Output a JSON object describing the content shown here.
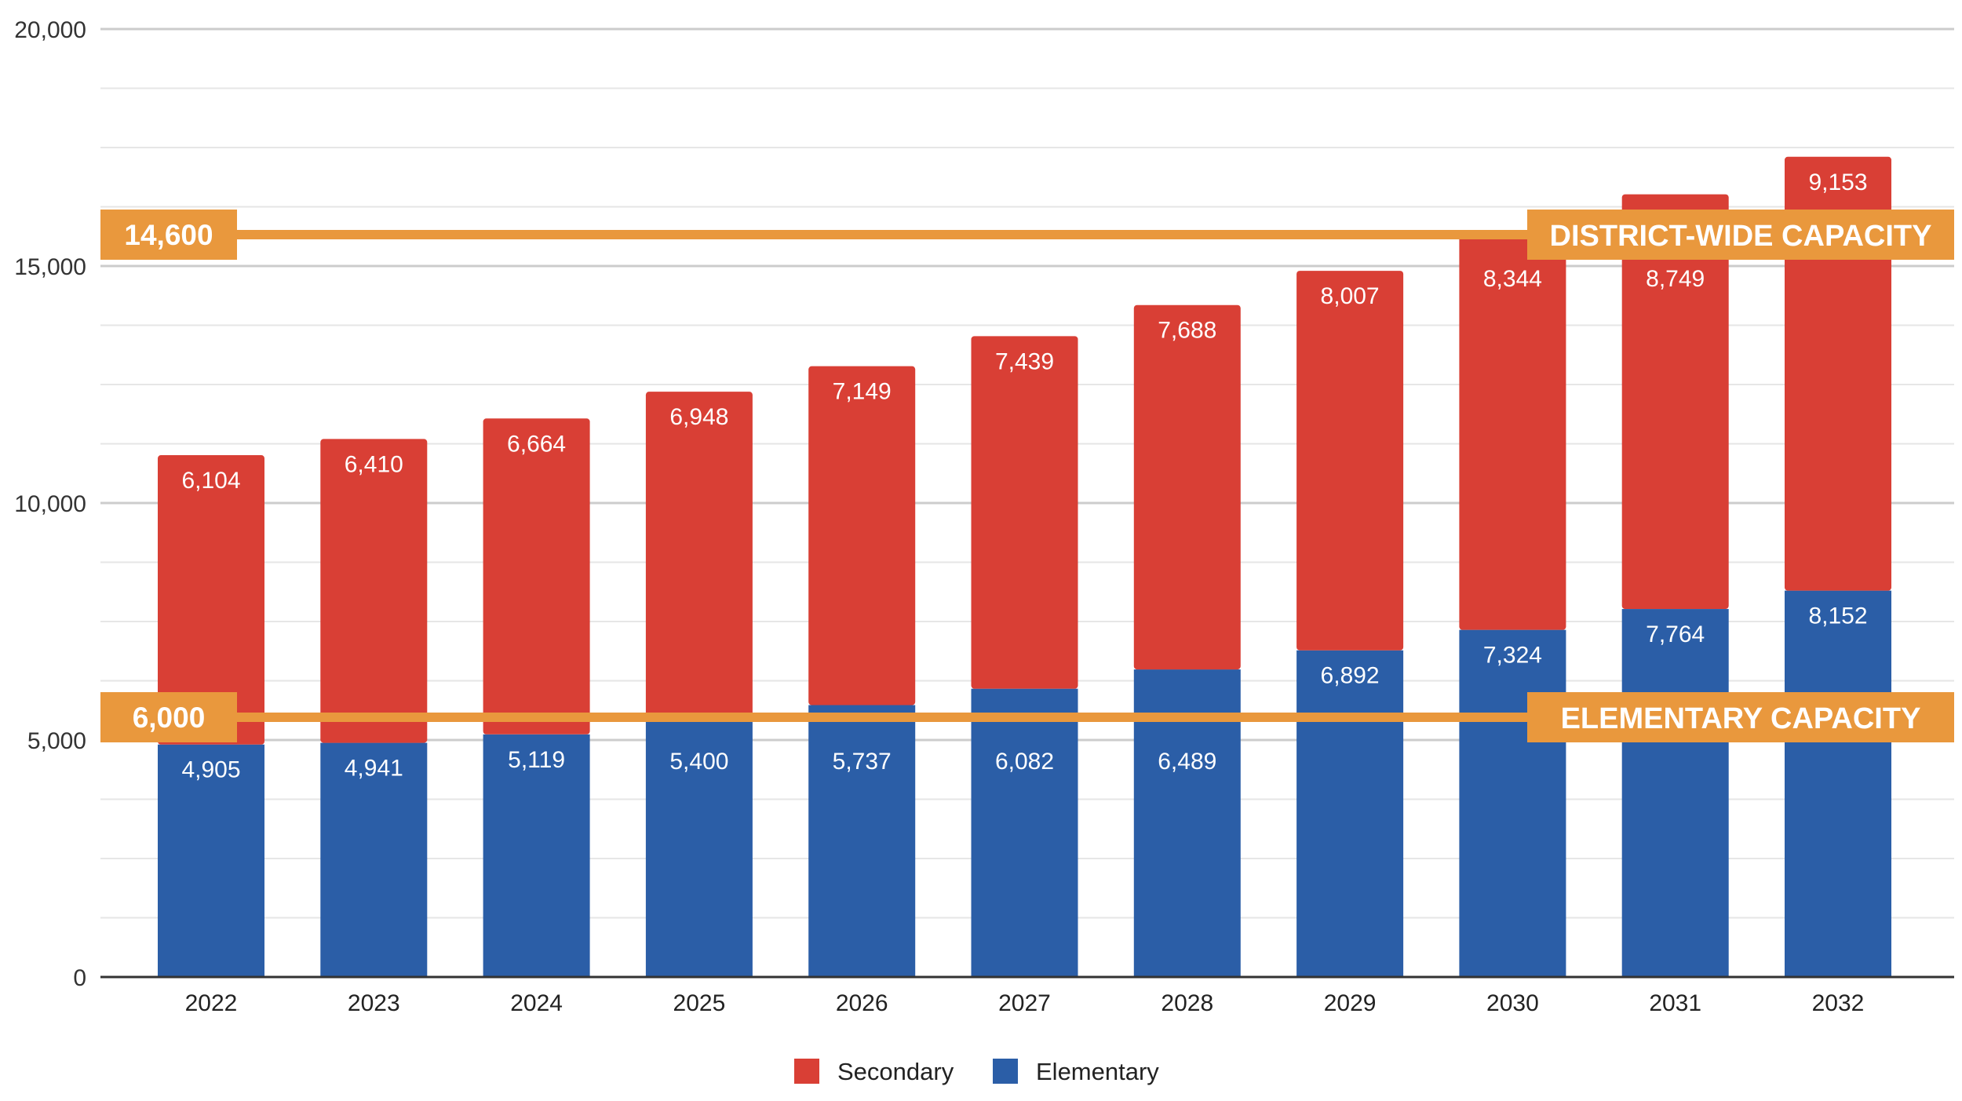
{
  "chart_data": {
    "type": "bar",
    "stacked": true,
    "title": "",
    "xlabel": "",
    "ylabel": "",
    "ylim": [
      0,
      20000
    ],
    "yticks": [
      "0",
      "5,000",
      "10,000",
      "15,000",
      "20,000"
    ],
    "grid": true,
    "legend_position": "bottom",
    "categories": [
      "2022",
      "2023",
      "2024",
      "2025",
      "2026",
      "2027",
      "2028",
      "2029",
      "2030",
      "2031",
      "2032"
    ],
    "series": [
      {
        "name": "Elementary",
        "color": "#2b5ea7",
        "values": [
          4905,
          4941,
          5119,
          5400,
          5737,
          6082,
          6489,
          6892,
          7324,
          7764,
          8152
        ],
        "labels": [
          "4,905",
          "4,941",
          "5,119",
          "5,400",
          "5,737",
          "6,082",
          "6,489",
          "6,892",
          "7,324",
          "7,764",
          "8,152"
        ]
      },
      {
        "name": "Secondary",
        "color": "#d93f35",
        "values": [
          6104,
          6410,
          6664,
          6948,
          7149,
          7439,
          7688,
          8007,
          8344,
          8749,
          9153
        ],
        "labels": [
          "6,104",
          "6,410",
          "6,664",
          "6,948",
          "7,149",
          "7,439",
          "7,688",
          "8,007",
          "8,344",
          "8,749",
          "9,153"
        ]
      }
    ],
    "legend": [
      "Secondary",
      "Elementary"
    ],
    "reference_lines": [
      {
        "value_label": "14,600",
        "label": "DISTRICT-WIDE CAPACITY",
        "color": "#e9983d"
      },
      {
        "value_label": "6,000",
        "label": "ELEMENTARY CAPACITY",
        "color": "#e9983d"
      }
    ]
  }
}
